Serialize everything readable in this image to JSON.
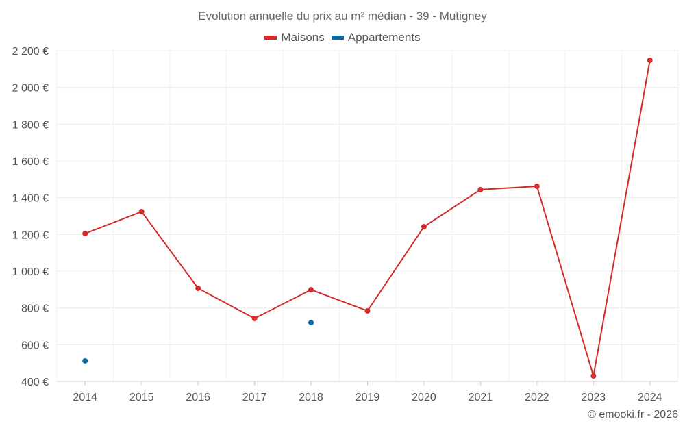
{
  "chart_data": {
    "type": "line",
    "title": "Evolution annuelle du prix au m² médian - 39 - Mutigney",
    "categories": [
      "2014",
      "2015",
      "2016",
      "2017",
      "2018",
      "2019",
      "2020",
      "2021",
      "2022",
      "2023",
      "2024"
    ],
    "series": [
      {
        "name": "Maisons",
        "color": "#d42a2a",
        "values": [
          1205,
          1324,
          907,
          743,
          899,
          784,
          1242,
          1444,
          1462,
          430,
          2148
        ]
      },
      {
        "name": "Appartements",
        "color": "#0b6aa2",
        "values": [
          512,
          null,
          null,
          null,
          720,
          null,
          null,
          null,
          null,
          null,
          null
        ]
      }
    ],
    "ylim": [
      400,
      2200
    ],
    "yticks": [
      400,
      600,
      800,
      1000,
      1200,
      1400,
      1600,
      1800,
      2000,
      2200
    ],
    "ytick_labels": [
      "400 €",
      "600 €",
      "800 €",
      "1 000 €",
      "1 200 €",
      "1 400 €",
      "1 600 €",
      "1 800 €",
      "2 000 €",
      "2 200 €"
    ],
    "xlabel": "",
    "ylabel": "",
    "grid": true,
    "legend_position": "top-center"
  },
  "credit": "© emooki.fr - 2026"
}
